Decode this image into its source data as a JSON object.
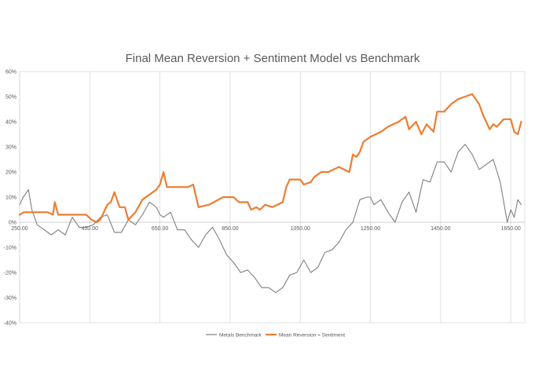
{
  "chart_data": {
    "type": "line",
    "title": "Final Mean Reversion + Sentiment Model vs Benchmark",
    "xlabel": "",
    "ylabel": "",
    "xlim": [
      250,
      1690
    ],
    "ylim": [
      -0.4,
      0.6
    ],
    "x_ticks": [
      "250.00",
      "450.00",
      "650.00",
      "850.00",
      "1050.00",
      "1250.00",
      "1450.00",
      "1650.00"
    ],
    "x_tick_values": [
      250,
      450,
      650,
      850,
      1050,
      1250,
      1450,
      1650
    ],
    "y_ticks": [
      "-40%",
      "-30%",
      "-20%",
      "-10%",
      "0%",
      "10%",
      "20%",
      "30%",
      "40%",
      "50%",
      "60%"
    ],
    "y_tick_values": [
      -0.4,
      -0.3,
      -0.2,
      -0.1,
      0,
      0.1,
      0.2,
      0.3,
      0.4,
      0.5,
      0.6
    ],
    "grid": "vertical",
    "legend_position": "bottom",
    "series": [
      {
        "name": "Metals Benchmark",
        "color": "#7f7f7f",
        "x": [
          250,
          260,
          275,
          285,
          300,
          320,
          340,
          360,
          380,
          400,
          420,
          440,
          460,
          480,
          500,
          520,
          540,
          560,
          580,
          600,
          620,
          640,
          650,
          660,
          680,
          700,
          720,
          740,
          760,
          780,
          800,
          820,
          840,
          860,
          880,
          900,
          920,
          940,
          960,
          980,
          1000,
          1020,
          1040,
          1060,
          1080,
          1100,
          1120,
          1140,
          1160,
          1180,
          1200,
          1220,
          1240,
          1250,
          1260,
          1280,
          1300,
          1320,
          1340,
          1360,
          1380,
          1400,
          1420,
          1440,
          1460,
          1480,
          1500,
          1520,
          1540,
          1560,
          1580,
          1600,
          1620,
          1640,
          1650,
          1660,
          1670,
          1680
        ],
        "y": [
          0.07,
          0.1,
          0.13,
          0.05,
          -0.01,
          -0.03,
          -0.05,
          -0.03,
          -0.05,
          0.02,
          -0.02,
          -0.02,
          -0.01,
          0.02,
          0.03,
          -0.04,
          -0.04,
          0.01,
          -0.01,
          0.03,
          0.08,
          0.06,
          0.03,
          0.02,
          0.04,
          -0.03,
          -0.03,
          -0.07,
          -0.1,
          -0.05,
          -0.02,
          -0.07,
          -0.13,
          -0.16,
          -0.2,
          -0.19,
          -0.22,
          -0.26,
          -0.26,
          -0.28,
          -0.26,
          -0.21,
          -0.2,
          -0.15,
          -0.2,
          -0.18,
          -0.12,
          -0.11,
          -0.08,
          -0.03,
          0.0,
          0.09,
          0.1,
          0.1,
          0.07,
          0.09,
          0.04,
          0.0,
          0.08,
          0.12,
          0.04,
          0.17,
          0.16,
          0.24,
          0.24,
          0.2,
          0.28,
          0.31,
          0.27,
          0.21,
          0.23,
          0.25,
          0.16,
          0.0,
          0.05,
          0.02,
          0.09,
          0.07
        ]
      },
      {
        "name": "Mean Reversion + Sentiment",
        "color": "#ed7d31",
        "x": [
          250,
          262,
          300,
          330,
          345,
          350,
          360,
          440,
          455,
          470,
          480,
          500,
          510,
          520,
          535,
          550,
          560,
          580,
          600,
          620,
          640,
          650,
          660,
          670,
          700,
          730,
          745,
          760,
          790,
          830,
          860,
          875,
          900,
          910,
          925,
          935,
          950,
          970,
          985,
          1000,
          1010,
          1020,
          1035,
          1050,
          1060,
          1080,
          1090,
          1110,
          1130,
          1160,
          1190,
          1200,
          1210,
          1220,
          1230,
          1250,
          1280,
          1300,
          1330,
          1350,
          1360,
          1380,
          1395,
          1410,
          1430,
          1440,
          1460,
          1480,
          1500,
          1520,
          1540,
          1550,
          1560,
          1570,
          1590,
          1600,
          1610,
          1630,
          1650,
          1660,
          1670,
          1680
        ],
        "y": [
          0.03,
          0.04,
          0.04,
          0.04,
          0.03,
          0.08,
          0.03,
          0.03,
          0.01,
          0.0,
          0.01,
          0.07,
          0.08,
          0.12,
          0.06,
          0.06,
          0.01,
          0.04,
          0.09,
          0.11,
          0.13,
          0.15,
          0.2,
          0.14,
          0.14,
          0.14,
          0.15,
          0.06,
          0.07,
          0.1,
          0.1,
          0.08,
          0.08,
          0.05,
          0.06,
          0.05,
          0.07,
          0.06,
          0.07,
          0.08,
          0.14,
          0.17,
          0.17,
          0.17,
          0.15,
          0.16,
          0.18,
          0.2,
          0.2,
          0.22,
          0.2,
          0.27,
          0.26,
          0.28,
          0.32,
          0.34,
          0.36,
          0.38,
          0.4,
          0.42,
          0.37,
          0.4,
          0.35,
          0.39,
          0.36,
          0.44,
          0.44,
          0.47,
          0.49,
          0.5,
          0.51,
          0.49,
          0.47,
          0.43,
          0.37,
          0.39,
          0.38,
          0.41,
          0.41,
          0.36,
          0.35,
          0.4
        ]
      }
    ]
  }
}
